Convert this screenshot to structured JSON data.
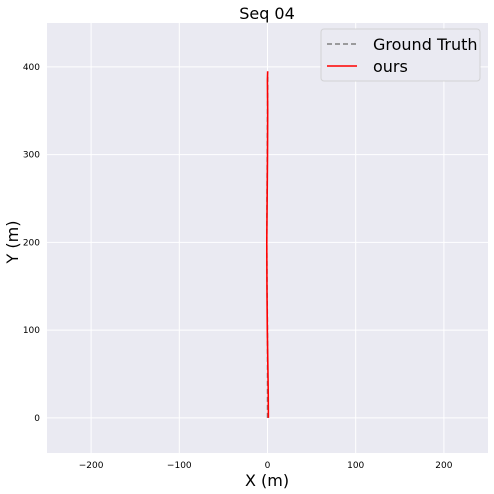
{
  "chart_data": {
    "type": "line",
    "title": "Seq 04",
    "xlabel": "X (m)",
    "ylabel": "Y (m)",
    "xlim": [
      -250,
      250
    ],
    "ylim": [
      -40,
      450
    ],
    "xticks": [
      -200,
      -100,
      0,
      100,
      200
    ],
    "yticks": [
      0,
      100,
      200,
      300,
      400
    ],
    "xtick_labels": [
      "−200",
      "−100",
      "0",
      "100",
      "200"
    ],
    "ytick_labels": [
      "0",
      "100",
      "200",
      "300",
      "400"
    ],
    "grid": true,
    "legend_position": "top-right",
    "background_color": "#eaeaf2",
    "series": [
      {
        "name": "Ground Truth",
        "style": "dashed",
        "color": "#808080",
        "x": [
          0.0,
          0.0,
          0.0,
          -0.5,
          -0.8,
          -0.6,
          -0.3,
          0.0,
          0.3,
          0.3
        ],
        "y": [
          0,
          50,
          100,
          150,
          200,
          250,
          300,
          350,
          380,
          392
        ]
      },
      {
        "name": "ours",
        "style": "solid",
        "color": "#ff0000",
        "x": [
          1.0,
          0.8,
          0.4,
          -0.2,
          -0.6,
          -0.8,
          -0.4,
          0.0,
          0.2,
          -0.1,
          0.2
        ],
        "y": [
          0,
          30,
          60,
          100,
          150,
          200,
          250,
          300,
          350,
          385,
          395
        ]
      }
    ]
  }
}
